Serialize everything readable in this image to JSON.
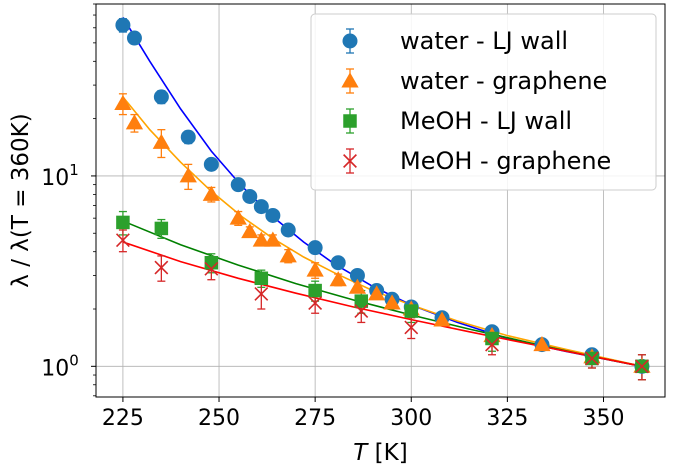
{
  "chart_data": {
    "type": "scatter",
    "title": "",
    "xlabel": "T [K]",
    "xlabel_italic": "T",
    "xlabel_unit": " [K]",
    "ylabel": "λ / λ(T = 360K)",
    "yscale": "log",
    "xlim": [
      218,
      366
    ],
    "ylim": [
      0.69,
      80
    ],
    "xticks": [
      225,
      250,
      275,
      300,
      325,
      350
    ],
    "yticks": [
      {
        "value": 1,
        "base": "10",
        "exp": "0"
      },
      {
        "value": 10,
        "base": "10",
        "exp": "1"
      }
    ],
    "grid": true,
    "legend_position": "top-right",
    "series": [
      {
        "name": "water - LJ wall",
        "color": "#1f77b4",
        "fit_color": "#0000ff",
        "marker": "circle",
        "x": [
          225,
          228,
          235,
          242,
          248,
          255,
          258,
          261,
          264,
          268,
          275,
          281,
          286,
          291,
          295,
          300,
          308,
          321,
          334,
          347,
          360
        ],
        "y": [
          62,
          53,
          26,
          16,
          11.5,
          9.0,
          7.8,
          6.9,
          6.2,
          5.2,
          4.2,
          3.5,
          3.0,
          2.5,
          2.25,
          2.05,
          1.8,
          1.52,
          1.3,
          1.15,
          1.0
        ],
        "err": [
          5,
          3,
          2,
          1.2,
          0.6,
          0.4,
          0.3,
          0.3,
          0.3,
          0.25,
          0.2,
          0.2,
          0.15,
          0.1,
          0.1,
          0.1,
          0.1,
          0.05,
          0.05,
          0.05,
          0.05
        ],
        "fit_x": [
          225,
          232,
          240,
          248,
          256,
          264,
          272,
          280,
          290,
          300,
          312,
          325,
          340,
          360
        ],
        "fit_y": [
          68,
          40,
          22.5,
          13.5,
          8.8,
          6.1,
          4.5,
          3.45,
          2.63,
          2.1,
          1.7,
          1.4,
          1.2,
          1.0
        ]
      },
      {
        "name": "water - graphene",
        "color": "#ff7f0e",
        "fit_color": "#ffa500",
        "marker": "triangle",
        "x": [
          225,
          228,
          235,
          242,
          248,
          255,
          258,
          261,
          264,
          268,
          275,
          281,
          286,
          291,
          295,
          300,
          308,
          321,
          334,
          347,
          360
        ],
        "y": [
          24,
          19,
          15,
          10,
          8.0,
          6.0,
          5.1,
          4.6,
          4.6,
          3.8,
          3.2,
          2.85,
          2.6,
          2.4,
          2.15,
          2.0,
          1.75,
          1.45,
          1.3,
          1.12,
          1.0
        ],
        "err": [
          3,
          2,
          2.5,
          1.5,
          0.7,
          0.5,
          0.3,
          0.3,
          0.3,
          0.3,
          0.3,
          0.2,
          0.15,
          0.1,
          0.1,
          0.1,
          0.1,
          0.05,
          0.05,
          0.05,
          0.05
        ],
        "fit_x": [
          225,
          232,
          240,
          248,
          256,
          264,
          272,
          280,
          290,
          300,
          312,
          325,
          340,
          360
        ],
        "fit_y": [
          26,
          17.5,
          11.8,
          8.3,
          6.1,
          4.7,
          3.75,
          3.1,
          2.5,
          2.1,
          1.73,
          1.45,
          1.23,
          1.0
        ]
      },
      {
        "name": "MeOH - LJ wall",
        "color": "#2ca02c",
        "fit_color": "#008000",
        "marker": "square",
        "x": [
          225,
          235,
          248,
          261,
          275,
          287,
          300,
          321,
          347,
          360
        ],
        "y": [
          5.7,
          5.3,
          3.5,
          2.9,
          2.5,
          2.2,
          1.95,
          1.4,
          1.1,
          1.0
        ],
        "err": [
          0.8,
          0.6,
          0.4,
          0.3,
          0.3,
          0.3,
          0.25,
          0.2,
          0.12,
          0.15
        ],
        "fit_x": [
          225,
          240,
          255,
          270,
          285,
          300,
          315,
          330,
          345,
          360
        ],
        "fit_y": [
          5.8,
          4.35,
          3.4,
          2.72,
          2.23,
          1.86,
          1.57,
          1.34,
          1.15,
          1.0
        ]
      },
      {
        "name": "MeOH - graphene",
        "color": "#d62728",
        "fit_color": "#ff0000",
        "marker": "x",
        "x": [
          225,
          235,
          248,
          261,
          275,
          287,
          300,
          321,
          347,
          360
        ],
        "y": [
          4.6,
          3.3,
          3.25,
          2.4,
          2.15,
          1.95,
          1.6,
          1.3,
          1.1,
          1.0
        ],
        "err": [
          0.6,
          0.5,
          0.4,
          0.4,
          0.25,
          0.25,
          0.2,
          0.15,
          0.12,
          0.15
        ],
        "fit_x": [
          225,
          240,
          255,
          270,
          285,
          300,
          315,
          330,
          345,
          360
        ],
        "fit_y": [
          4.5,
          3.55,
          2.9,
          2.42,
          2.05,
          1.76,
          1.52,
          1.32,
          1.15,
          1.0
        ]
      }
    ]
  }
}
